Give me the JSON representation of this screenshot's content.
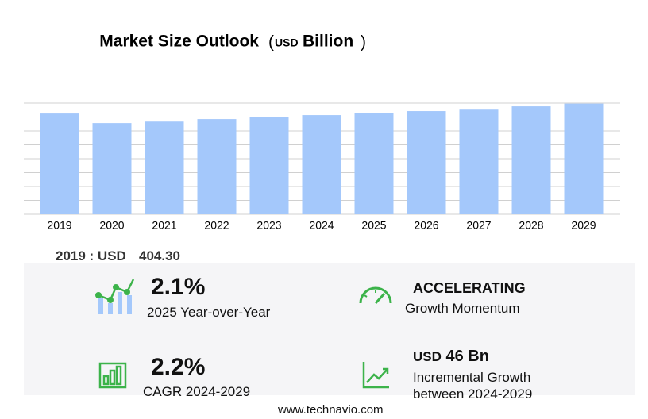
{
  "chart_data": {
    "type": "bar",
    "title": "Market Size Outlook",
    "unit_prefix": "USD",
    "unit": "Billion",
    "categories": [
      "2019",
      "2020",
      "2021",
      "2022",
      "2023",
      "2024",
      "2025",
      "2026",
      "2027",
      "2028",
      "2029"
    ],
    "values": [
      404.3,
      366,
      372,
      382,
      391,
      398,
      407,
      414,
      423,
      433,
      444
    ],
    "color": "#a4c8fb",
    "ylim": [
      0,
      446
    ],
    "grid": true
  },
  "stats": {
    "base_label": "2019 : USD",
    "base_value": "404.30",
    "yoy_value": "2.1%",
    "yoy_label": "2025 Year-over-Year",
    "momentum_value": "ACCELERATING",
    "momentum_label": "Growth Momentum",
    "cagr_value": "2.2%",
    "cagr_label": "CAGR 2024-2029",
    "incr_prefix": "USD",
    "incr_value": "46 Bn",
    "incr_label_1": "Incremental Growth",
    "incr_label_2": "between 2024-2029"
  },
  "footer": "www.technavio.com"
}
